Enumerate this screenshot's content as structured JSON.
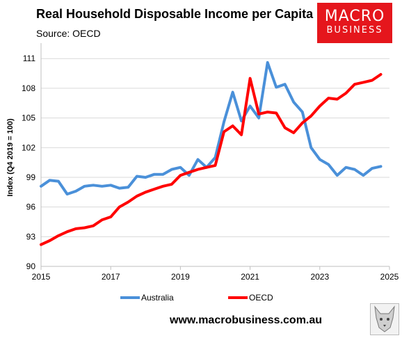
{
  "header": {
    "title": "Real Household Disposable Income per Capita",
    "subtitle": "Source: OECD"
  },
  "logo": {
    "line1": "MACRO",
    "line2": "BUSINESS",
    "color": "#e5161c"
  },
  "footer": {
    "website": "www.macrobusiness.com.au",
    "icon": "wolf-logo-icon"
  },
  "chart_data": {
    "type": "line",
    "title": "Real Household Disposable Income per Capita",
    "subtitle": "Source: OECD",
    "ylabel": "Index (Q4 2019 = 100)",
    "xlabel": "",
    "xlim": [
      2015,
      2025
    ],
    "ylim": [
      90,
      112
    ],
    "xticks": [
      2015,
      2017,
      2019,
      2021,
      2023,
      2025
    ],
    "yticks": [
      90,
      93,
      96,
      99,
      102,
      105,
      108,
      111
    ],
    "grid": "horizontal",
    "legend": "bottom",
    "series": [
      {
        "name": "Australia",
        "color": "#4a90d9",
        "x": [
          2015,
          2015.25,
          2015.5,
          2015.75,
          2016,
          2016.25,
          2016.5,
          2016.75,
          2017,
          2017.25,
          2017.5,
          2017.75,
          2018,
          2018.25,
          2018.5,
          2018.75,
          2019,
          2019.25,
          2019.5,
          2019.75,
          2020,
          2020.25,
          2020.5,
          2020.75,
          2021,
          2021.25,
          2021.5,
          2021.75,
          2022,
          2022.25,
          2022.5,
          2022.75,
          2023,
          2023.25,
          2023.5,
          2023.75,
          2024,
          2024.25,
          2024.5,
          2024.75
        ],
        "values": [
          98.1,
          98.7,
          98.6,
          97.3,
          97.6,
          98.1,
          98.2,
          98.1,
          98.2,
          97.9,
          98.0,
          99.1,
          99.0,
          99.3,
          99.3,
          99.8,
          100.0,
          99.2,
          100.8,
          100.0,
          101.0,
          104.6,
          107.6,
          104.7,
          106.2,
          105.0,
          110.6,
          108.1,
          108.4,
          106.6,
          105.6,
          102.0,
          100.8,
          100.3,
          99.2,
          100.0,
          99.8,
          99.2,
          99.9,
          100.1
        ]
      },
      {
        "name": "OECD",
        "color": "#ff0000",
        "x": [
          2015,
          2015.25,
          2015.5,
          2015.75,
          2016,
          2016.25,
          2016.5,
          2016.75,
          2017,
          2017.25,
          2017.5,
          2017.75,
          2018,
          2018.25,
          2018.5,
          2018.75,
          2019,
          2019.25,
          2019.5,
          2019.75,
          2020,
          2020.25,
          2020.5,
          2020.75,
          2021,
          2021.25,
          2021.5,
          2021.75,
          2022,
          2022.25,
          2022.5,
          2022.75,
          2023,
          2023.25,
          2023.5,
          2023.75,
          2024,
          2024.25,
          2024.5,
          2024.75
        ],
        "values": [
          92.2,
          92.6,
          93.1,
          93.5,
          93.8,
          93.9,
          94.1,
          94.7,
          95.0,
          96.0,
          96.5,
          97.1,
          97.5,
          97.8,
          98.1,
          98.3,
          99.2,
          99.5,
          99.8,
          100.0,
          100.2,
          103.6,
          104.2,
          103.3,
          109.0,
          105.4,
          105.6,
          105.5,
          104.0,
          103.5,
          104.5,
          105.2,
          106.2,
          107.0,
          106.9,
          107.5,
          108.4,
          108.6,
          108.8,
          109.4
        ]
      }
    ]
  }
}
